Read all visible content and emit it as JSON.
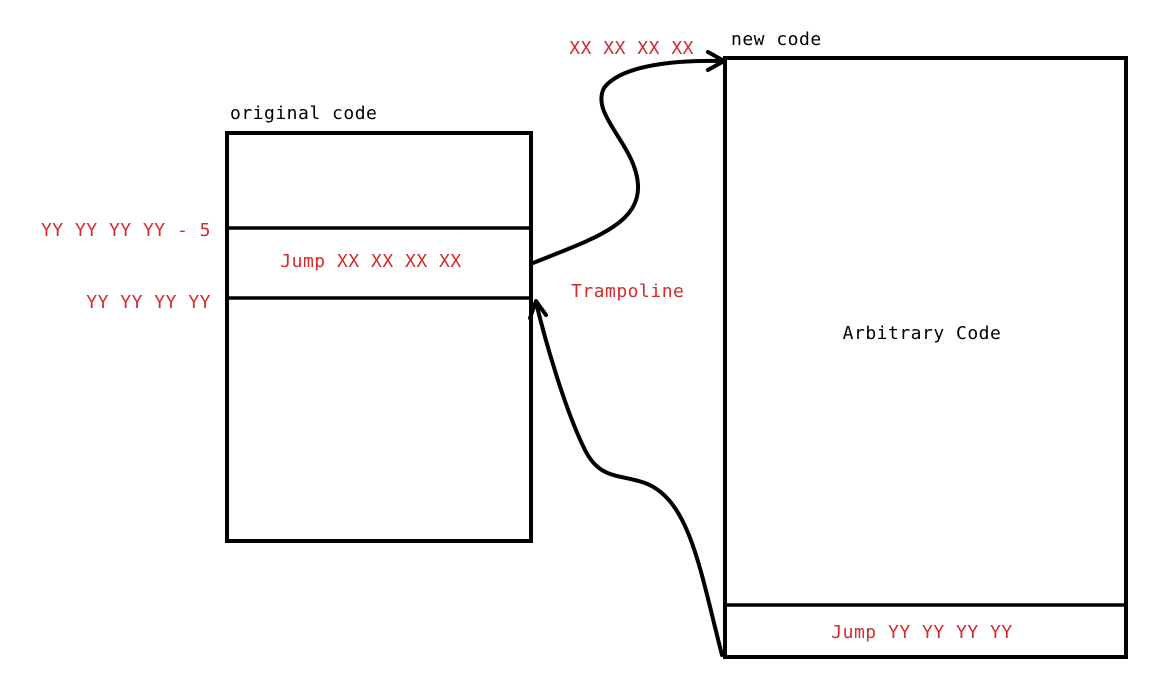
{
  "colors": {
    "ink": "#000000",
    "annotation": "#d42a2a",
    "background": "#ffffff"
  },
  "original": {
    "title": "original code",
    "jump_label": "Jump XX XX XX XX",
    "addr_above": "YY YY YY YY - 5",
    "addr_below": "YY YY YY YY"
  },
  "new_code": {
    "title": "new code",
    "body_label": "Arbitrary Code",
    "jump_back_label": "Jump YY YY YY YY",
    "target_addr": "XX XX XX XX"
  },
  "trampoline_label": "Trampoline"
}
